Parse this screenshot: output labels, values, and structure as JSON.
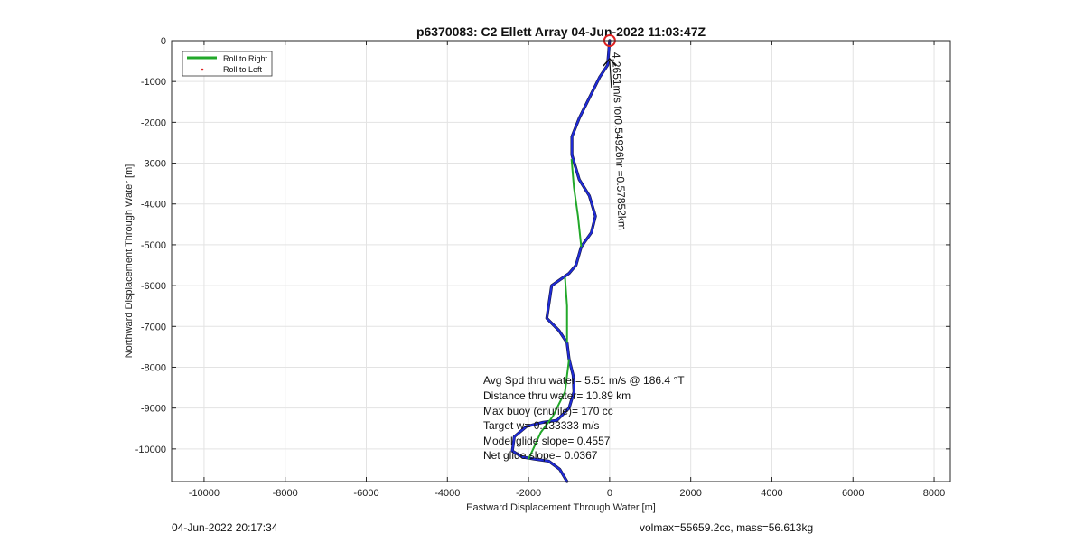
{
  "chart_data": {
    "type": "line",
    "title": "p6370083: C2 Ellett Array 04-Jun-2022 11:03:47Z",
    "xlabel": "Eastward Displacement Through Water [m]",
    "ylabel": "Northward Displacement Through Water [m]",
    "xlim": [
      -10800,
      8400
    ],
    "ylim": [
      -10800,
      0
    ],
    "xticks": [
      -10000,
      -8000,
      -6000,
      -4000,
      -2000,
      0,
      2000,
      4000,
      6000,
      8000
    ],
    "yticks": [
      0,
      -1000,
      -2000,
      -3000,
      -4000,
      -5000,
      -6000,
      -7000,
      -8000,
      -9000,
      -10000
    ],
    "grid": true,
    "legend": {
      "position": "top-left",
      "entries": [
        "Roll to Right",
        "Roll to Left"
      ]
    },
    "colors": {
      "track_blue": "#1f2bd6",
      "roll_right": "#22a82a",
      "roll_left": "#dd2222",
      "track_dark": "#101030",
      "marker_red": "#dd2222"
    },
    "series": [
      {
        "name": "track",
        "points": [
          [
            -1050,
            -10800
          ],
          [
            -1230,
            -10500
          ],
          [
            -1500,
            -10300
          ],
          [
            -1850,
            -10250
          ],
          [
            -2150,
            -10200
          ],
          [
            -2400,
            -10050
          ],
          [
            -2350,
            -9700
          ],
          [
            -2050,
            -9450
          ],
          [
            -1650,
            -9350
          ],
          [
            -1300,
            -9300
          ],
          [
            -1000,
            -9000
          ],
          [
            -880,
            -8600
          ],
          [
            -900,
            -8200
          ],
          [
            -1000,
            -7800
          ],
          [
            -1050,
            -7400
          ],
          [
            -1250,
            -7100
          ],
          [
            -1550,
            -6800
          ],
          [
            -1430,
            -6000
          ],
          [
            -1000,
            -5700
          ],
          [
            -830,
            -5500
          ],
          [
            -700,
            -5050
          ],
          [
            -450,
            -4700
          ],
          [
            -350,
            -4300
          ],
          [
            -500,
            -3800
          ],
          [
            -750,
            -3400
          ],
          [
            -930,
            -2800
          ],
          [
            -930,
            -2350
          ],
          [
            -750,
            -1900
          ],
          [
            -500,
            -1400
          ],
          [
            -250,
            -900
          ],
          [
            -50,
            -600
          ],
          [
            0,
            0
          ]
        ]
      },
      {
        "name": "Roll to Right",
        "segments": [
          [
            [
              -1000,
              -7800
            ],
            [
              -1100,
              -8600
            ],
            [
              -1400,
              -9200
            ],
            [
              -1700,
              -9600
            ],
            [
              -2000,
              -10250
            ]
          ],
          [
            [
              -1050,
              -7400
            ],
            [
              -1050,
              -6500
            ],
            [
              -1100,
              -5800
            ]
          ],
          [
            [
              -700,
              -5050
            ],
            [
              -780,
              -4300
            ],
            [
              -880,
              -3600
            ],
            [
              -940,
              -2900
            ]
          ]
        ]
      }
    ],
    "start_marker": {
      "x": 0,
      "y": 0
    },
    "arrow_label": "4.2651m/s for0.54926hr =0.57852km",
    "annotations": [
      "Avg Spd thru water=  5.51 m/s @ 186.4 °T",
      "Distance thru water= 10.89 km",
      "Max buoy (cnufile)= 170 cc",
      "Target w= 0.133333 m/s",
      "Model glide slope= 0.4557",
      "Net glide slope= 0.0367"
    ]
  },
  "footer": {
    "left": "04-Jun-2022 20:17:34",
    "right": "volmax=55659.2cc, mass=56.613kg"
  }
}
